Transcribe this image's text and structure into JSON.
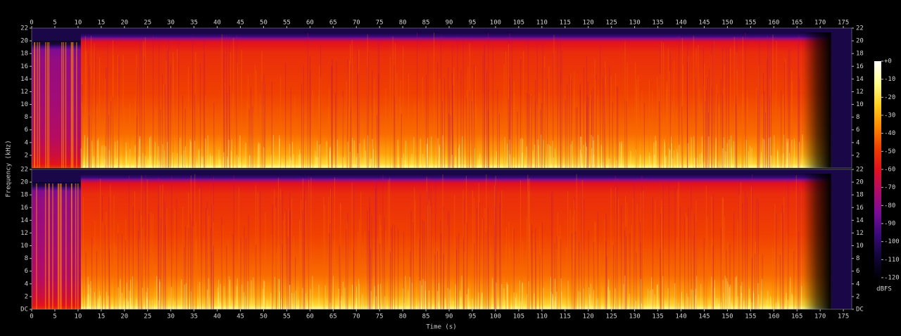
{
  "chart_data": {
    "type": "spectrogram",
    "xlabel": "Time (s)",
    "ylabel": "Frequency (kHz)",
    "colorbar_label": "dBFS",
    "xlim": [
      0,
      176.8
    ],
    "xticks": [
      0,
      5,
      10,
      15,
      20,
      25,
      30,
      35,
      40,
      45,
      50,
      55,
      60,
      65,
      70,
      75,
      80,
      85,
      90,
      95,
      100,
      105,
      110,
      115,
      120,
      125,
      130,
      135,
      140,
      145,
      150,
      155,
      160,
      165,
      170,
      175
    ],
    "channels": [
      {
        "ylim": [
          0,
          22
        ],
        "yticks": [
          2,
          4,
          6,
          8,
          10,
          12,
          14,
          16,
          18,
          20,
          22
        ]
      },
      {
        "ylim": [
          0,
          22
        ],
        "yticks": [
          {
            "value": 0,
            "label": "DC"
          },
          2,
          4,
          6,
          8,
          10,
          12,
          14,
          16,
          18,
          20,
          22
        ]
      }
    ],
    "zlim": [
      -120,
      0
    ],
    "zticks": [
      {
        "value": 0,
        "label": "+0"
      },
      -10,
      -20,
      -30,
      -40,
      -50,
      -60,
      -70,
      -80,
      -90,
      -100,
      -110,
      -120
    ],
    "colormap": [
      "#000008",
      "#12063a",
      "#3a0a7a",
      "#7a0c98",
      "#b00c6a",
      "#e0101e",
      "#f04000",
      "#ff8a00",
      "#ffd020",
      "#ffff90",
      "#ffffff"
    ]
  }
}
